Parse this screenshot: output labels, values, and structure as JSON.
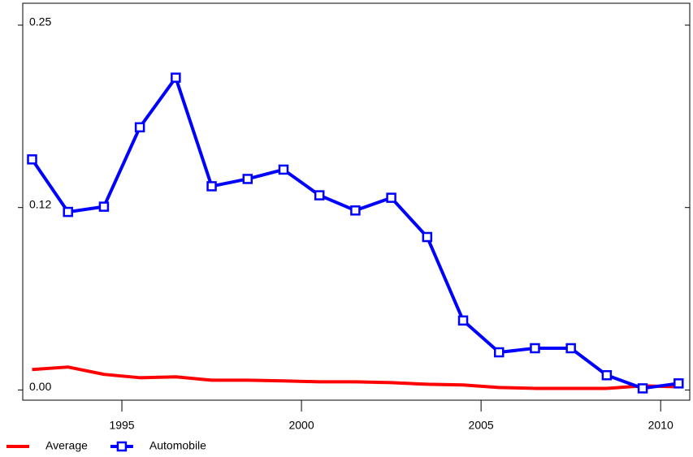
{
  "chart_data": {
    "type": "line",
    "x": [
      1992.5,
      1993.5,
      1994.5,
      1995.5,
      1996.5,
      1997.5,
      1998.5,
      1999.5,
      2000.5,
      2001.5,
      2002.5,
      2003.5,
      2004.5,
      2005.5,
      2006.5,
      2007.5,
      2008.5,
      2009.5,
      2010.5
    ],
    "series": [
      {
        "name": "Average",
        "color": "#ff0000",
        "values": [
          0.014,
          0.0157,
          0.0107,
          0.0084,
          0.009,
          0.0067,
          0.0067,
          0.0062,
          0.0056,
          0.0056,
          0.005,
          0.0039,
          0.0034,
          0.0017,
          0.0011,
          0.0011,
          0.0011,
          0.0028,
          0.0022
        ]
      },
      {
        "name": "Automobile",
        "color": "#0000ff",
        "values": [
          0.158,
          0.122,
          0.1256,
          0.18,
          0.214,
          0.1396,
          0.1446,
          0.151,
          0.1334,
          0.123,
          0.1317,
          0.1048,
          0.0476,
          0.0258,
          0.0286,
          0.0286,
          0.0101,
          0.0011,
          0.0045
        ]
      }
    ],
    "xlim": [
      1992.24,
      2010.81
    ],
    "xticks": [
      1995,
      2000,
      2005,
      2010
    ],
    "ylim": [
      -0.007,
      0.265
    ],
    "yticks": [
      {
        "value": 0,
        "label": "0.00"
      },
      {
        "value": 0.125,
        "label": "0.12"
      },
      0.25
    ],
    "legend": "bottom-left"
  }
}
